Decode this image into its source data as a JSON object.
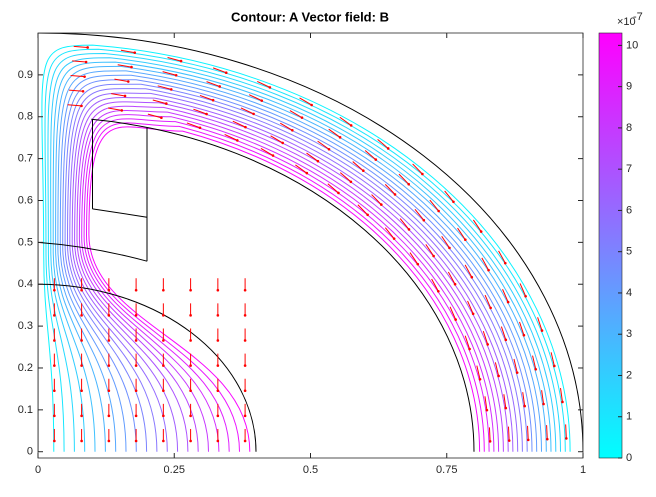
{
  "chart_data": {
    "type": "contour",
    "title": "Contour: A  Vector field: B",
    "xlim": [
      0,
      1
    ],
    "ylim": [
      -0.015,
      1
    ],
    "xticks": [
      0,
      0.25,
      0.5,
      0.75,
      1
    ],
    "yticks": [
      0,
      0.1,
      0.2,
      0.3,
      0.4,
      0.5,
      0.6,
      0.7,
      0.8,
      0.9
    ],
    "levels": [
      0.5,
      1,
      1.5,
      2,
      2.5,
      3,
      3.5,
      4,
      4.5,
      5,
      5.5,
      6,
      6.5,
      7,
      7.5,
      8,
      8.5,
      9,
      9.5,
      10
    ],
    "clim": [
      0,
      10.3
    ],
    "cticks": [
      0,
      1,
      2,
      3,
      4,
      5,
      6,
      7,
      8,
      9,
      10
    ],
    "colormap": [
      "#00ffff",
      "#ff00ff"
    ],
    "colorbar_multiplier_base": "×10",
    "colorbar_multiplier_exponent": "-7",
    "arrow_color": "#ff0000"
  }
}
